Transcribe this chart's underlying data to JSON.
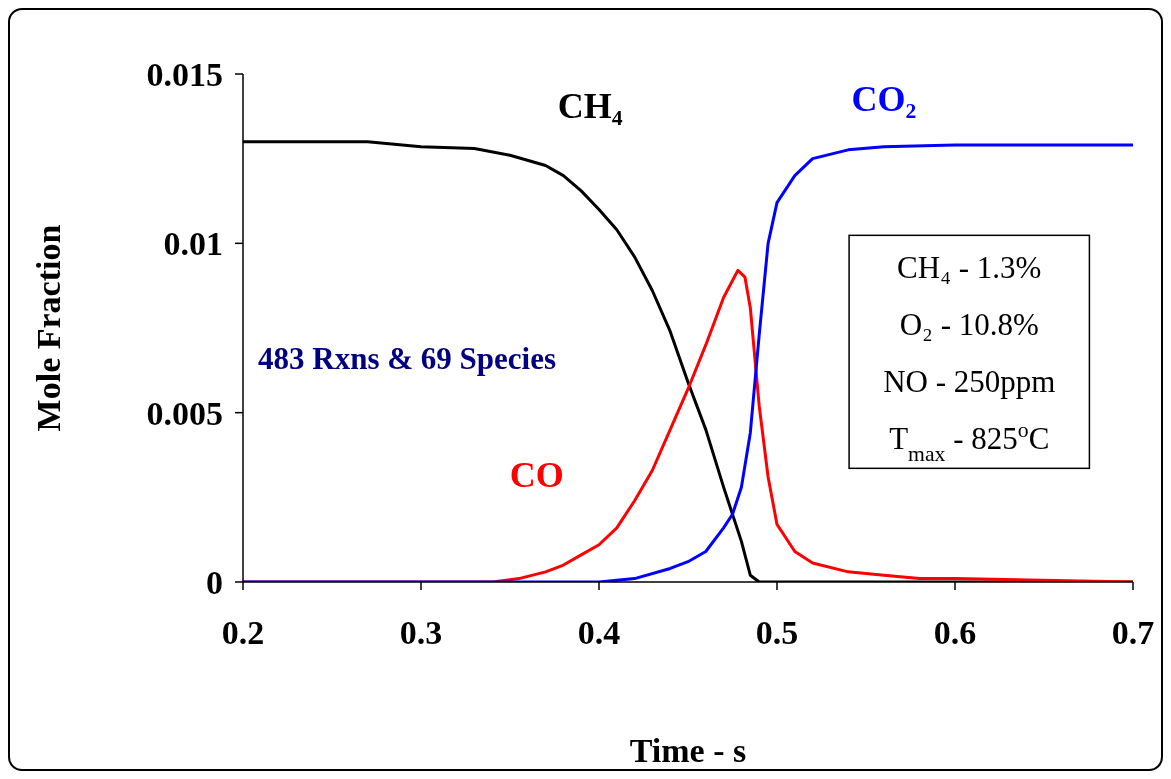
{
  "chart_data": {
    "type": "line",
    "xlabel": "Time - s",
    "ylabel": "Mole Fraction",
    "xlim": [
      0.2,
      0.7
    ],
    "xticks": [
      0.2,
      0.3,
      0.4,
      0.5,
      0.6,
      0.7
    ],
    "ylim": [
      0,
      0.015
    ],
    "yticks": [
      0,
      0.005,
      0.01,
      0.015
    ],
    "marker": "none",
    "line_style": "solid",
    "series": [
      {
        "name": "CH₄",
        "color": "#000000",
        "x": [
          0.2,
          0.27,
          0.3,
          0.33,
          0.35,
          0.37,
          0.38,
          0.39,
          0.4,
          0.41,
          0.42,
          0.43,
          0.44,
          0.45,
          0.46,
          0.47,
          0.48,
          0.485,
          0.49,
          0.7
        ],
        "values": [
          0.013,
          0.013,
          0.01285,
          0.0128,
          0.0126,
          0.0123,
          0.012,
          0.01155,
          0.011,
          0.0104,
          0.0096,
          0.0086,
          0.0074,
          0.0059,
          0.0045,
          0.0028,
          0.0012,
          0.0002,
          0,
          0
        ]
      },
      {
        "name": "CO",
        "color": "#ff0000",
        "x": [
          0.2,
          0.34,
          0.355,
          0.37,
          0.38,
          0.39,
          0.4,
          0.41,
          0.42,
          0.43,
          0.44,
          0.45,
          0.46,
          0.47,
          0.478,
          0.482,
          0.485,
          0.49,
          0.495,
          0.5,
          0.51,
          0.52,
          0.54,
          0.56,
          0.58,
          0.6,
          0.7
        ],
        "values": [
          0,
          0,
          0.0001,
          0.0003,
          0.0005,
          0.0008,
          0.0011,
          0.0016,
          0.0024,
          0.0033,
          0.0045,
          0.0057,
          0.007,
          0.0084,
          0.0092,
          0.009,
          0.0081,
          0.0052,
          0.0031,
          0.0017,
          0.0009,
          0.00056,
          0.0003,
          0.0002,
          0.0001,
          0.0001,
          0
        ]
      },
      {
        "name": "CO₂",
        "color": "#0000ff",
        "x": [
          0.2,
          0.4,
          0.42,
          0.44,
          0.45,
          0.46,
          0.47,
          0.475,
          0.48,
          0.485,
          0.49,
          0.495,
          0.5,
          0.51,
          0.52,
          0.54,
          0.56,
          0.6,
          0.7
        ],
        "values": [
          0,
          0,
          0.0001,
          0.0004,
          0.0006,
          0.0009,
          0.0016,
          0.002,
          0.0028,
          0.0044,
          0.0073,
          0.01,
          0.0112,
          0.012,
          0.0125,
          0.01276,
          0.01285,
          0.0129,
          0.0129
        ]
      }
    ],
    "annotations": [
      "483 Rxns & 69 Species",
      "CH₄ - 1.3%",
      "O₂ - 10.8%",
      "NO - 250ppm",
      "T$_{max}$ - 825$^{o}$C"
    ]
  }
}
